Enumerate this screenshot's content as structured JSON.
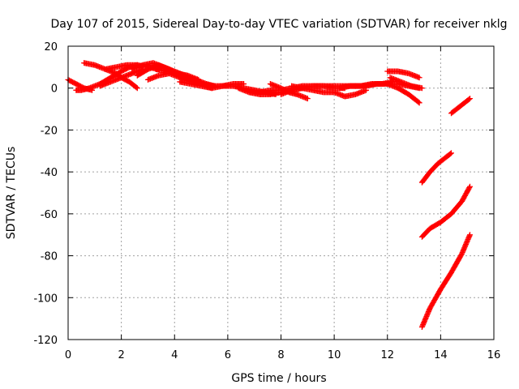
{
  "chart_data": {
    "type": "scatter",
    "title": "Day 107 of 2015, Sidereal Day-to-day VTEC variation (SDTVAR) for receiver nklg",
    "xlabel": "GPS time / hours",
    "ylabel": "SDTVAR / TECUs",
    "xlim": [
      0,
      16
    ],
    "ylim": [
      -120,
      20
    ],
    "xticks": [
      0,
      2,
      4,
      6,
      8,
      10,
      12,
      14,
      16
    ],
    "yticks": [
      20,
      0,
      -20,
      -40,
      -60,
      -80,
      -100,
      -120
    ],
    "grid": true,
    "legend": "none",
    "marker": "plus",
    "color": "#ff0000",
    "series": [
      {
        "x": [
          0.0,
          0.3,
          0.6,
          0.9
        ],
        "y": [
          4,
          2,
          0,
          -1
        ]
      },
      {
        "x": [
          0.3,
          0.5,
          0.8,
          1.2,
          1.6,
          2.0,
          2.3,
          2.6
        ],
        "y": [
          -1,
          -1,
          0,
          2,
          5,
          8,
          10,
          11
        ]
      },
      {
        "x": [
          0.6,
          1.0,
          1.4,
          1.8,
          2.0,
          2.3,
          2.6
        ],
        "y": [
          12,
          11,
          9,
          7,
          5,
          3,
          0
        ]
      },
      {
        "x": [
          1.2,
          1.6,
          2.0,
          2.4,
          2.8
        ],
        "y": [
          1,
          3,
          5,
          7,
          9
        ]
      },
      {
        "x": [
          1.4,
          1.8,
          2.2,
          2.6,
          3.0,
          3.4
        ],
        "y": [
          9,
          10,
          11,
          11,
          10,
          9
        ]
      },
      {
        "x": [
          2.4,
          2.8,
          3.2,
          3.6,
          4.0,
          4.4,
          4.8,
          5.2,
          5.5
        ],
        "y": [
          9,
          11,
          12,
          10,
          8,
          6,
          4,
          2,
          1
        ]
      },
      {
        "x": [
          2.6,
          3.0,
          3.4,
          3.8,
          4.2,
          4.6,
          5.0,
          5.5
        ],
        "y": [
          6,
          9,
          11,
          9,
          6,
          4,
          2,
          1
        ]
      },
      {
        "x": [
          3.0,
          3.4,
          3.8,
          4.2,
          4.6,
          5.0,
          5.4
        ],
        "y": [
          4,
          6,
          7,
          5,
          3,
          2,
          0
        ]
      },
      {
        "x": [
          3.3,
          3.7,
          4.1,
          4.5,
          4.9
        ],
        "y": [
          9,
          8,
          7,
          6,
          4
        ]
      },
      {
        "x": [
          4.2,
          4.6,
          5.0,
          5.4,
          5.8,
          6.2,
          6.6
        ],
        "y": [
          3,
          2,
          1,
          0,
          1,
          2,
          2
        ]
      },
      {
        "x": [
          5.4,
          5.8,
          6.2,
          6.6,
          7.0,
          7.4,
          7.8
        ],
        "y": [
          1,
          1,
          1,
          0,
          -1,
          -2,
          -3
        ]
      },
      {
        "x": [
          6.4,
          6.8,
          7.2,
          7.6,
          8.0,
          8.4,
          8.8
        ],
        "y": [
          0,
          -2,
          -3,
          -3,
          -2,
          -1,
          0
        ]
      },
      {
        "x": [
          6.8,
          7.2,
          7.6,
          8.0,
          8.4,
          8.8,
          9.2,
          9.6,
          10.0,
          10.4
        ],
        "y": [
          -2,
          -2,
          -1,
          -1,
          0,
          1,
          1,
          1,
          0,
          0
        ]
      },
      {
        "x": [
          7.6,
          8.0,
          8.3,
          8.6,
          9.0
        ],
        "y": [
          2,
          0,
          -2,
          -3,
          -5
        ]
      },
      {
        "x": [
          8.0,
          8.4,
          8.8,
          9.2,
          9.6,
          10.0,
          10.4,
          10.8
        ],
        "y": [
          -3,
          -1,
          0,
          1,
          1,
          1,
          1,
          1
        ]
      },
      {
        "x": [
          8.4,
          8.8,
          9.2,
          9.6,
          10.0,
          10.4,
          10.8,
          11.2
        ],
        "y": [
          1,
          0,
          -1,
          -2,
          -2,
          -4,
          -3,
          -1
        ]
      },
      {
        "x": [
          10.2,
          10.6,
          11.0,
          11.4,
          11.8,
          12.2
        ],
        "y": [
          0,
          1,
          1,
          2,
          2,
          3
        ]
      },
      {
        "x": [
          10.8,
          11.2,
          11.6,
          12.0,
          12.4,
          12.8,
          13.2
        ],
        "y": [
          1,
          1,
          2,
          2,
          2,
          1,
          0
        ]
      },
      {
        "x": [
          12.0,
          12.4,
          12.8,
          13.2
        ],
        "y": [
          8,
          8,
          7,
          5
        ]
      },
      {
        "x": [
          12.1,
          12.5,
          12.9,
          13.3
        ],
        "y": [
          5,
          3,
          1,
          0
        ]
      },
      {
        "x": [
          12.0,
          12.4,
          12.8,
          13.2
        ],
        "y": [
          2,
          0,
          -3,
          -7
        ]
      },
      {
        "x": [
          13.3,
          13.6,
          13.9,
          14.2,
          14.4
        ],
        "y": [
          -45,
          -40,
          -36,
          -33,
          -31
        ]
      },
      {
        "x": [
          13.3,
          13.6,
          14.0,
          14.4,
          14.8,
          15.1
        ],
        "y": [
          -71,
          -67,
          -64,
          -60,
          -54,
          -47
        ]
      },
      {
        "x": [
          13.3,
          13.6,
          14.0,
          14.4,
          14.8,
          15.1
        ],
        "y": [
          -114,
          -105,
          -96,
          -88,
          -79,
          -70
        ]
      },
      {
        "x": [
          14.4,
          14.8,
          15.1
        ],
        "y": [
          -12,
          -8,
          -5
        ]
      }
    ]
  }
}
